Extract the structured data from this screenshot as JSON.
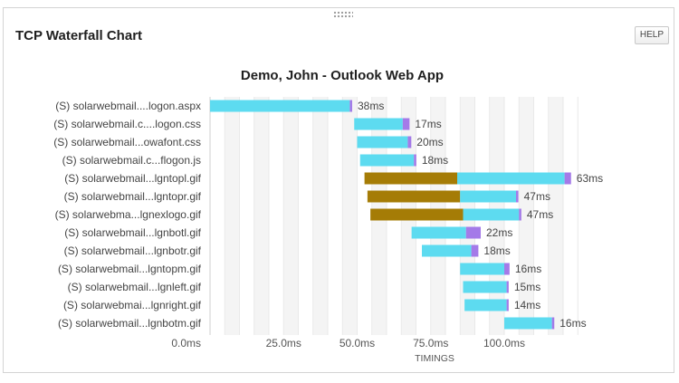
{
  "widget": {
    "title": "TCP Waterfall Chart",
    "help_label": "HELP"
  },
  "chart_data": {
    "type": "bar",
    "orientation": "horizontal",
    "stacked": true,
    "title": "Demo, John - Outlook Web App",
    "xlabel": "TIMINGS",
    "xlim": [
      0,
      125
    ],
    "x_ticks": [
      "0.0ms",
      "25.0ms",
      "50.0ms",
      "75.0ms",
      "100.0ms"
    ],
    "x_tick_values": [
      0,
      25,
      50,
      75,
      100
    ],
    "grid": true,
    "colors": {
      "wait": "#a57c06",
      "receive": "#5ddbf0",
      "end": "#a47ae8"
    },
    "rows": [
      {
        "label": "(S) solarwebmail....logon.aspx",
        "start": 0,
        "wait": 0,
        "receive": 47.5,
        "end": 0.8,
        "duration_label": "38ms"
      },
      {
        "label": "(S) solarwebmail.c....logon.css",
        "start": 49,
        "wait": 0,
        "receive": 16.5,
        "end": 2.3,
        "duration_label": "17ms"
      },
      {
        "label": "(S) solarwebmail...owafont.css",
        "start": 50,
        "wait": 0,
        "receive": 17.2,
        "end": 1.2,
        "duration_label": "20ms"
      },
      {
        "label": "(S) solarwebmail.c...flogon.js",
        "start": 51,
        "wait": 0,
        "receive": 18.3,
        "end": 0.8,
        "duration_label": "18ms"
      },
      {
        "label": "(S) solarwebmail...lgntopl.gif",
        "start": 52.5,
        "wait": 31.5,
        "receive": 36.5,
        "end": 2.2,
        "duration_label": "63ms"
      },
      {
        "label": "(S) solarwebmail...lgntopr.gif",
        "start": 53.5,
        "wait": 31.5,
        "receive": 19,
        "end": 0.8,
        "duration_label": "47ms"
      },
      {
        "label": "(S) solarwebma...lgnexlogo.gif",
        "start": 54.5,
        "wait": 31.5,
        "receive": 19,
        "end": 0.8,
        "duration_label": "47ms"
      },
      {
        "label": "(S) solarwebmail...lgnbotl.gif",
        "start": 68.5,
        "wait": 0,
        "receive": 18.5,
        "end": 5,
        "duration_label": "22ms"
      },
      {
        "label": "(S) solarwebmail...lgnbotr.gif",
        "start": 72,
        "wait": 0,
        "receive": 16.8,
        "end": 2.4,
        "duration_label": "18ms"
      },
      {
        "label": "(S) solarwebmail...lgntopm.gif",
        "start": 85,
        "wait": 0,
        "receive": 15,
        "end": 1.8,
        "duration_label": "16ms"
      },
      {
        "label": "(S) solarwebmail...lgnleft.gif",
        "start": 86,
        "wait": 0,
        "receive": 14.8,
        "end": 0.7,
        "duration_label": "15ms"
      },
      {
        "label": "(S) solarwebmai...lgnright.gif",
        "start": 86.5,
        "wait": 0,
        "receive": 14.3,
        "end": 0.7,
        "duration_label": "14ms"
      },
      {
        "label": "(S) solarwebmail...lgnbotm.gif",
        "start": 100,
        "wait": 0,
        "receive": 16.2,
        "end": 0.8,
        "duration_label": "16ms"
      }
    ]
  }
}
